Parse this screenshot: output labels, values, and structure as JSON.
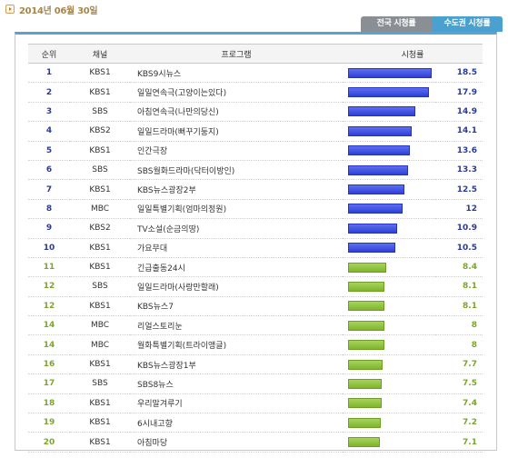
{
  "header": {
    "date": "2014년 06월 30일"
  },
  "tabs": [
    {
      "label": "전국 시청률"
    },
    {
      "label": "수도권 시청률"
    }
  ],
  "columns": [
    "순위",
    "채널",
    "프로그램",
    "시청률"
  ],
  "colors": {
    "top_bar": "#3446dc",
    "low_bar": "#8ec03e",
    "tab_active": "#4aa1cf",
    "tab_inactive": "#8a8f95"
  },
  "max_rating": 18.5,
  "rows": [
    {
      "rank": "1",
      "channel": "KBS1",
      "program": "KBS9시뉴스",
      "rating": "18.5"
    },
    {
      "rank": "2",
      "channel": "KBS1",
      "program": "일일연속극(고양이는있다)",
      "rating": "17.9"
    },
    {
      "rank": "3",
      "channel": "SBS",
      "program": "아침연속극(나만의당신)",
      "rating": "14.9"
    },
    {
      "rank": "4",
      "channel": "KBS2",
      "program": "일일드라마(뻐꾸기둥지)",
      "rating": "14.1"
    },
    {
      "rank": "5",
      "channel": "KBS1",
      "program": "인간극장",
      "rating": "13.6"
    },
    {
      "rank": "6",
      "channel": "SBS",
      "program": "SBS월화드라마(닥터이방인)",
      "rating": "13.3"
    },
    {
      "rank": "7",
      "channel": "KBS1",
      "program": "KBS뉴스광장2부",
      "rating": "12.5"
    },
    {
      "rank": "8",
      "channel": "MBC",
      "program": "일일특별기획(엄마의정원)",
      "rating": "12"
    },
    {
      "rank": "9",
      "channel": "KBS2",
      "program": "TV소설(순금의땅)",
      "rating": "10.9"
    },
    {
      "rank": "10",
      "channel": "KBS1",
      "program": "가요무대",
      "rating": "10.5"
    },
    {
      "rank": "11",
      "channel": "KBS1",
      "program": "긴급출동24시",
      "rating": "8.4"
    },
    {
      "rank": "12",
      "channel": "SBS",
      "program": "일일드라마(사랑만할래)",
      "rating": "8.1"
    },
    {
      "rank": "12",
      "channel": "KBS1",
      "program": "KBS뉴스7",
      "rating": "8.1"
    },
    {
      "rank": "14",
      "channel": "MBC",
      "program": "리얼스토리눈",
      "rating": "8"
    },
    {
      "rank": "14",
      "channel": "MBC",
      "program": "월화특별기획(트라이앵글)",
      "rating": "8"
    },
    {
      "rank": "16",
      "channel": "KBS1",
      "program": "KBS뉴스광장1부",
      "rating": "7.7"
    },
    {
      "rank": "17",
      "channel": "SBS",
      "program": "SBS8뉴스",
      "rating": "7.5"
    },
    {
      "rank": "18",
      "channel": "KBS1",
      "program": "우리말겨루기",
      "rating": "7.4"
    },
    {
      "rank": "19",
      "channel": "KBS1",
      "program": "6시내고향",
      "rating": "7.2"
    },
    {
      "rank": "20",
      "channel": "KBS1",
      "program": "아침마당",
      "rating": "7.1"
    }
  ]
}
